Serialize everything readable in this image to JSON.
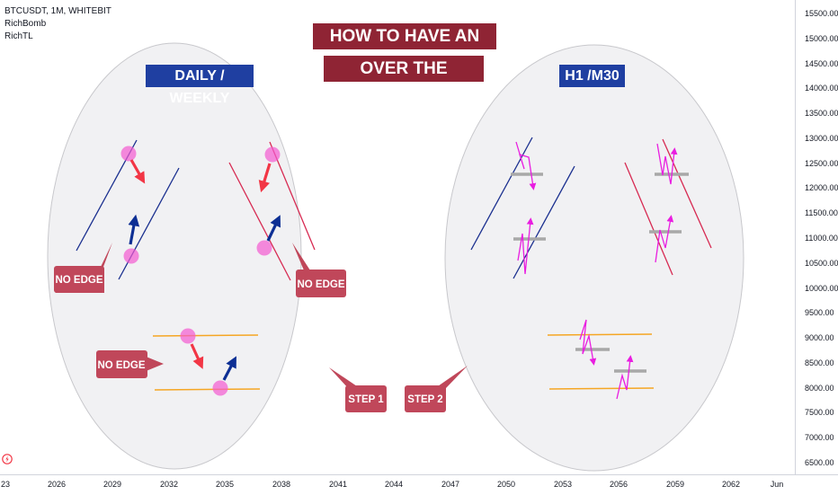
{
  "header": {
    "symbol_line": "BTCUSDT, 1M, WHITEBIT",
    "indicators": [
      "RichBomb",
      "RichTL"
    ]
  },
  "titles": {
    "line1": "HOW TO HAVE AN EDGE",
    "line2": "OVER THE MARKETS",
    "left_panel": "DAILY / WEEKLY",
    "right_panel": "H1 /M30"
  },
  "callouts": {
    "no_edge_left": "NO EDGE",
    "no_edge_right": "NO EDGE",
    "no_edge_bottom": "NO EDGE",
    "step1": "STEP 1",
    "step2": "STEP 2"
  },
  "colors": {
    "title_bg": "#8f2434",
    "panel_title_bg": "#1f3fa1",
    "callout_bg": "#c0475a",
    "arrow_red": "#f23645",
    "arrow_blue": "#0d2f94",
    "touch_pink": "#f45ad0",
    "line_blue": "#1a2f8f",
    "line_red": "#d72a52",
    "line_orange": "#f5a623",
    "zigzag": "#e91ee0",
    "level_grey": "#a8a8a8",
    "circle_fill": "#f1f1f3",
    "circle_stroke": "#c8c8cc"
  },
  "chart_data": {
    "type": "line",
    "y_ticks": [
      15500,
      15000,
      14500,
      14000,
      13500,
      13000,
      12500,
      12000,
      11500,
      11000,
      10500,
      10000,
      9500,
      9000,
      8500,
      8000,
      7500,
      7000,
      6500
    ],
    "y_tick_labels": [
      "15500.00",
      "15000.00",
      "14500.00",
      "14000.00",
      "13500.00",
      "13000.00",
      "12500.00",
      "12000.00",
      "11500.00",
      "11000.00",
      "10500.00",
      "10000.00",
      "9500.00",
      "9000.00",
      "8500.00",
      "8000.00",
      "7500.00",
      "7000.00",
      "6500.00"
    ],
    "x_tick_labels": [
      "23",
      "2026",
      "2029",
      "2032",
      "2035",
      "2038",
      "2041",
      "2044",
      "2047",
      "2050",
      "2053",
      "2056",
      "2059",
      "2062",
      "Jun"
    ],
    "ylim": [
      6300,
      15800
    ],
    "grid": false
  }
}
